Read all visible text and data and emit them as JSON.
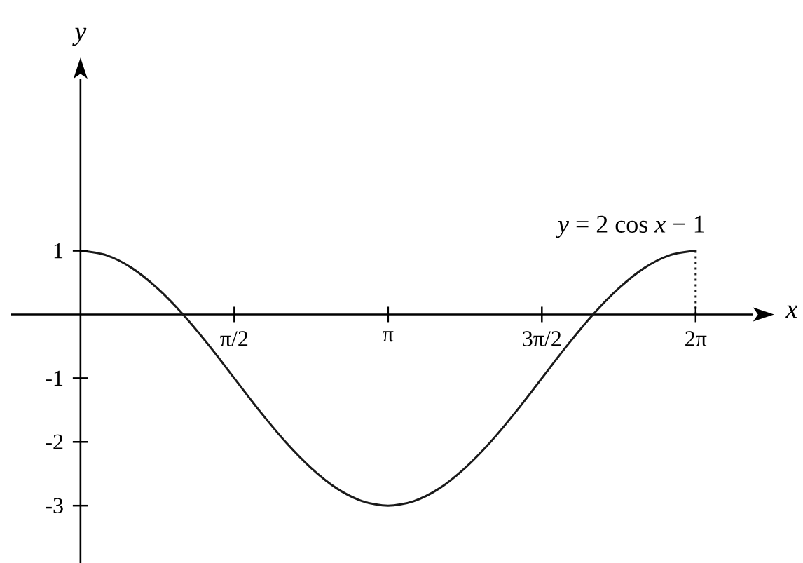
{
  "chart_data": {
    "type": "line",
    "xlabel": "x",
    "ylabel": "y",
    "categories": [
      null,
      null,
      null,
      null,
      null,
      null,
      "π/2",
      null,
      null,
      null,
      null,
      null,
      "π",
      null,
      null,
      null,
      null,
      null,
      "3π/2",
      null,
      null,
      null,
      null,
      null,
      "2π"
    ],
    "ylim": [
      -3.9,
      3.7
    ],
    "yticks": [
      -3,
      -2,
      -1,
      1
    ],
    "series": [
      {
        "name": "*y* = 2 cos *x* − 1",
        "color": "#1a1a1a",
        "values": [
          1,
          0.93,
          0.73,
          0.41,
          0,
          -0.48,
          -1,
          -1.52,
          -2,
          -2.41,
          -2.73,
          -2.93,
          -3,
          -2.93,
          -2.73,
          -2.41,
          -2,
          -1.52,
          -1,
          -0.48,
          0,
          0.41,
          0.73,
          0.93,
          1
        ]
      }
    ],
    "ref_lines": [
      {
        "axis": "x",
        "value": "2π",
        "line_style": "dotted",
        "color": "#1a1a1a"
      }
    ]
  }
}
